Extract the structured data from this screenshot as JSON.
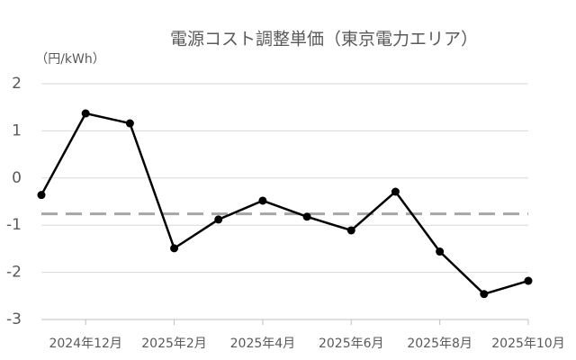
{
  "chart_data": {
    "type": "line",
    "title": "電源コスト調整単価（東京電力エリア）",
    "y_label": "（円/kWh）",
    "categories": [
      null,
      "2024年12月",
      null,
      "2025年2月",
      null,
      "2025年4月",
      null,
      "2025年6月",
      null,
      "2025年8月",
      null,
      "2025年10月"
    ],
    "series": [
      {
        "color": "#000000",
        "values": [
          -0.36,
          1.37,
          1.16,
          -1.49,
          -0.88,
          -0.48,
          -0.82,
          -1.11,
          -0.29,
          -1.56,
          -2.46,
          -2.18
        ]
      }
    ],
    "reference_lines": [
      {
        "value": -0.76,
        "color": "#a6a6a6"
      }
    ],
    "ylim": [
      -3,
      2
    ],
    "yticks": [
      2,
      1,
      0,
      -1,
      -2,
      -3
    ],
    "grid": true
  }
}
